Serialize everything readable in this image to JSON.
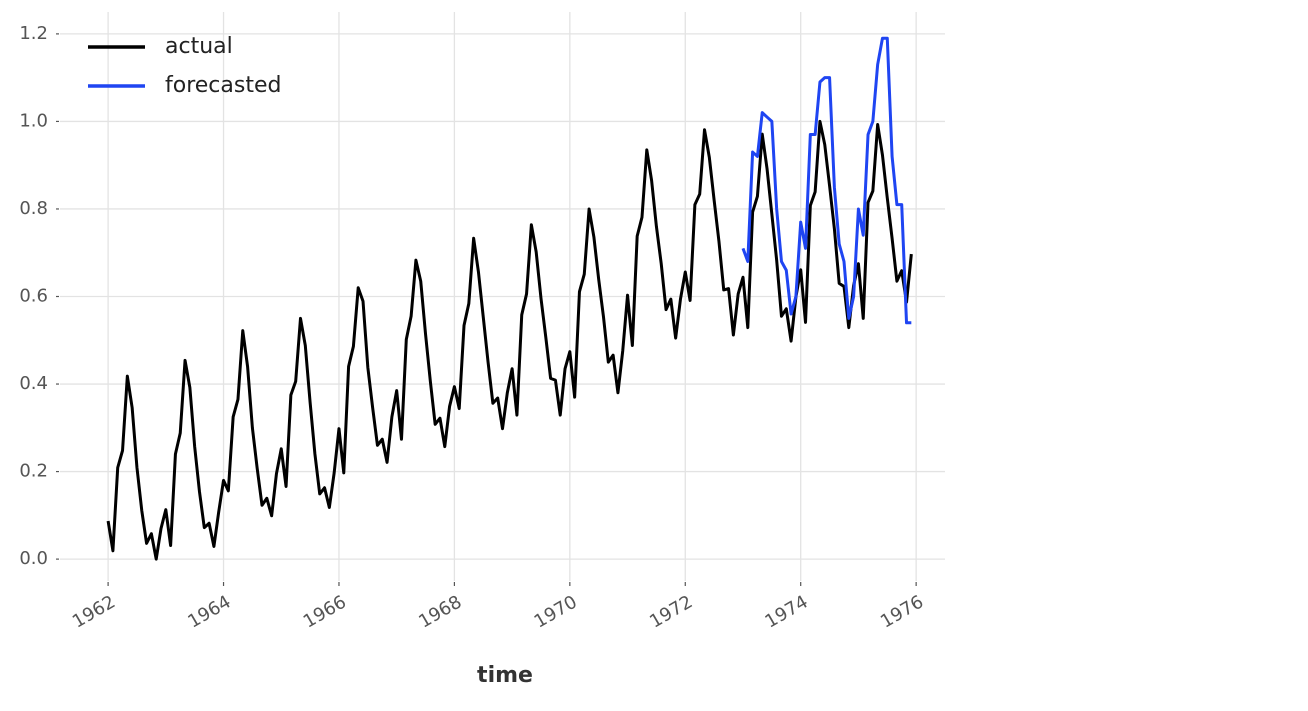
{
  "chart_data": {
    "type": "line",
    "x_label": "time",
    "xlim": [
      "1961-03",
      "1976-07"
    ],
    "xticks": [
      "1962",
      "1964",
      "1966",
      "1968",
      "1970",
      "1972",
      "1974",
      "1976"
    ],
    "ylim": [
      -0.05,
      1.25
    ],
    "yticks": [
      {
        "value": 0,
        "label": "0.0"
      },
      0.2,
      0.4,
      0.6,
      0.8,
      {
        "value": 1,
        "label": "1.0"
      },
      1.2
    ],
    "grid": true,
    "legend": "upper left",
    "series": [
      {
        "name": "actual",
        "color": "#000000",
        "x": [
          "1962-01",
          "1962-02",
          "1962-03",
          "1962-04",
          "1962-05",
          "1962-06",
          "1962-07",
          "1962-08",
          "1962-09",
          "1962-10",
          "1962-11",
          "1962-12",
          "1963-01",
          "1963-02",
          "1963-03",
          "1963-04",
          "1963-05",
          "1963-06",
          "1963-07",
          "1963-08",
          "1963-09",
          "1963-10",
          "1963-11",
          "1963-12",
          "1964-01",
          "1964-02",
          "1964-03",
          "1964-04",
          "1964-05",
          "1964-06",
          "1964-07",
          "1964-08",
          "1964-09",
          "1964-10",
          "1964-11",
          "1964-12",
          "1965-01",
          "1965-02",
          "1965-03",
          "1965-04",
          "1965-05",
          "1965-06",
          "1965-07",
          "1965-08",
          "1965-09",
          "1965-10",
          "1965-11",
          "1965-12",
          "1966-01",
          "1966-02",
          "1966-03",
          "1966-04",
          "1966-05",
          "1966-06",
          "1966-07",
          "1966-08",
          "1966-09",
          "1966-10",
          "1966-11",
          "1966-12",
          "1967-01",
          "1967-02",
          "1967-03",
          "1967-04",
          "1967-05",
          "1967-06",
          "1967-07",
          "1967-08",
          "1967-09",
          "1967-10",
          "1967-11",
          "1967-12",
          "1968-01",
          "1968-02",
          "1968-03",
          "1968-04",
          "1968-05",
          "1968-06",
          "1968-07",
          "1968-08",
          "1968-09",
          "1968-10",
          "1968-11",
          "1968-12",
          "1969-01",
          "1969-02",
          "1969-03",
          "1969-04",
          "1969-05",
          "1969-06",
          "1969-07",
          "1969-08",
          "1969-09",
          "1969-10",
          "1969-11",
          "1969-12",
          "1970-01",
          "1970-02",
          "1970-03",
          "1970-04",
          "1970-05",
          "1970-06",
          "1970-07",
          "1970-08",
          "1970-09",
          "1970-10",
          "1970-11",
          "1970-12",
          "1971-01",
          "1971-02",
          "1971-03",
          "1971-04",
          "1971-05",
          "1971-06",
          "1971-07",
          "1971-08",
          "1971-09",
          "1971-10",
          "1971-11",
          "1971-12",
          "1972-01",
          "1972-02",
          "1972-03",
          "1972-04",
          "1972-05",
          "1972-06",
          "1972-07",
          "1972-08",
          "1972-09",
          "1972-10",
          "1972-11",
          "1972-12",
          "1973-01",
          "1973-02",
          "1973-03",
          "1973-04",
          "1973-05",
          "1973-06",
          "1973-07",
          "1973-08",
          "1973-09",
          "1973-10",
          "1973-11",
          "1973-12",
          "1974-01",
          "1974-02",
          "1974-03",
          "1974-04",
          "1974-05",
          "1974-06",
          "1974-07",
          "1974-08",
          "1974-09",
          "1974-10",
          "1974-11",
          "1974-12",
          "1975-01",
          "1975-02",
          "1975-03",
          "1975-04",
          "1975-05",
          "1975-06",
          "1975-07",
          "1975-08",
          "1975-09",
          "1975-10",
          "1975-11",
          "1975-12"
        ],
        "values": [
          0.087,
          0.019,
          0.209,
          0.248,
          0.418,
          0.346,
          0.209,
          0.111,
          0.036,
          0.058,
          0,
          0.07,
          0.113,
          0.031,
          0.24,
          0.288,
          0.454,
          0.392,
          0.257,
          0.154,
          0.072,
          0.082,
          0.029,
          0.108,
          0.18,
          0.156,
          0.325,
          0.365,
          0.522,
          0.44,
          0.3,
          0.207,
          0.123,
          0.139,
          0.099,
          0.195,
          0.252,
          0.166,
          0.375,
          0.406,
          0.55,
          0.488,
          0.358,
          0.24,
          0.149,
          0.163,
          0.118,
          0.197,
          0.298,
          0.197,
          0.44,
          0.486,
          0.62,
          0.589,
          0.438,
          0.346,
          0.26,
          0.274,
          0.221,
          0.325,
          0.385,
          0.274,
          0.502,
          0.555,
          0.683,
          0.635,
          0.514,
          0.406,
          0.308,
          0.322,
          0.257,
          0.349,
          0.394,
          0.344,
          0.534,
          0.584,
          0.733,
          0.656,
          0.553,
          0.45,
          0.356,
          0.368,
          0.298,
          0.38,
          0.435,
          0.329,
          0.558,
          0.606,
          0.764,
          0.702,
          0.596,
          0.507,
          0.413,
          0.409,
          0.329,
          0.435,
          0.474,
          0.37,
          0.611,
          0.651,
          0.8,
          0.736,
          0.639,
          0.553,
          0.45,
          0.466,
          0.38,
          0.476,
          0.603,
          0.488,
          0.738,
          0.781,
          0.935,
          0.865,
          0.76,
          0.675,
          0.57,
          0.594,
          0.505,
          0.594,
          0.656,
          0.591,
          0.81,
          0.834,
          0.981,
          0.918,
          0.82,
          0.726,
          0.615,
          0.618,
          0.512,
          0.606,
          0.644,
          0.529,
          0.793,
          0.829,
          0.971,
          0.892,
          0.788,
          0.683,
          0.555,
          0.572,
          0.498,
          0.599,
          0.661,
          0.541,
          0.808,
          0.839,
          1.0,
          0.947,
          0.853,
          0.755,
          0.63,
          0.623,
          0.529,
          0.625,
          0.675,
          0.55,
          0.815,
          0.841,
          0.993,
          0.923,
          0.825,
          0.733,
          0.635,
          0.659,
          0.587,
          0.697
        ]
      },
      {
        "name": "forecasted",
        "color": "#1f45f2",
        "x": [
          "1973-01",
          "1973-02",
          "1973-03",
          "1973-04",
          "1973-05",
          "1973-06",
          "1973-07",
          "1973-08",
          "1973-09",
          "1973-10",
          "1973-11",
          "1973-12",
          "1974-01",
          "1974-02",
          "1974-03",
          "1974-04",
          "1974-05",
          "1974-06",
          "1974-07",
          "1974-08",
          "1974-09",
          "1974-10",
          "1974-11",
          "1974-12",
          "1975-01",
          "1975-02",
          "1975-03",
          "1975-04",
          "1975-05",
          "1975-06",
          "1975-07",
          "1975-08",
          "1975-09",
          "1975-10",
          "1975-11",
          "1975-12"
        ],
        "values": [
          0.71,
          0.68,
          0.93,
          0.92,
          1.02,
          1.01,
          1.0,
          0.8,
          0.68,
          0.66,
          0.56,
          0.6,
          0.77,
          0.71,
          0.97,
          0.97,
          1.09,
          1.1,
          1.1,
          0.85,
          0.72,
          0.68,
          0.55,
          0.6,
          0.8,
          0.74,
          0.97,
          1.0,
          1.13,
          1.19,
          1.19,
          0.92,
          0.81,
          0.81,
          0.54,
          0.54
        ]
      }
    ]
  }
}
